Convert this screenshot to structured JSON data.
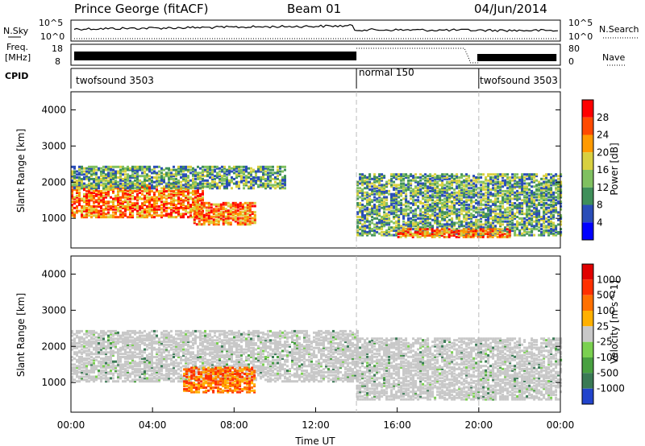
{
  "header": {
    "title": "Prince George (fitACF)",
    "beam": "Beam 01",
    "date": "04/Jun/2014"
  },
  "panels": {
    "nsky": {
      "label": "N.Sky",
      "ticks": [
        "10^5",
        "10^0"
      ],
      "right_label": "N.Search",
      "right_ticks": [
        "10^5",
        "10^0"
      ]
    },
    "freq": {
      "label_line1": "Freq.",
      "label_line2": "[MHz]",
      "ticks": [
        "18",
        "8"
      ],
      "right_label": "Nave",
      "right_ticks": [
        "80",
        "0"
      ]
    },
    "cpid": {
      "label": "CPID",
      "segments": [
        {
          "name": "twofsound 3503",
          "start": "00:00",
          "end": "14:00"
        },
        {
          "name": "normal 150",
          "start": "14:00",
          "end": "20:00"
        },
        {
          "name": "twofsound 3503",
          "start": "20:00",
          "end": "24:00"
        }
      ]
    }
  },
  "chart_data": [
    {
      "type": "heatmap",
      "title": "Power",
      "ylabel": "Slant Range [km]",
      "ylim": [
        180,
        4500
      ],
      "yticks": [
        "1000",
        "2000",
        "3000",
        "4000"
      ],
      "xlim": [
        "00:00",
        "24:00"
      ],
      "colorbar": {
        "label": "Power [dB]",
        "ticks": [
          "4",
          "8",
          "12",
          "16",
          "20",
          "24",
          "28"
        ],
        "colors": [
          "#0000ff",
          "#2a4db8",
          "#3f8f5a",
          "#80c060",
          "#d8d040",
          "#ff9a00",
          "#ff4a00",
          "#ff0000"
        ]
      },
      "regions": [
        {
          "t": [
            0.0,
            6.5
          ],
          "r": [
            1000,
            1900
          ],
          "level": "strong"
        },
        {
          "t": [
            0.0,
            10.5
          ],
          "r": [
            1800,
            2400
          ],
          "level": "medium"
        },
        {
          "t": [
            6.0,
            9.0
          ],
          "r": [
            800,
            1400
          ],
          "level": "strong"
        },
        {
          "t": [
            14.0,
            24.0
          ],
          "r": [
            500,
            2200
          ],
          "level": "medium"
        },
        {
          "t": [
            16.0,
            21.5
          ],
          "r": [
            450,
            700
          ],
          "level": "strong"
        }
      ]
    },
    {
      "type": "heatmap",
      "title": "Velocity",
      "ylabel": "Slant Range [km]",
      "ylim": [
        180,
        4500
      ],
      "yticks": [
        "1000",
        "2000",
        "3000",
        "4000"
      ],
      "xlim": [
        "00:00",
        "24:00"
      ],
      "colorbar": {
        "label": "Velocity [m s^-1]",
        "ticks": [
          "1000",
          "500",
          "100",
          "25",
          "-25",
          "-100",
          "-500",
          "-1000"
        ],
        "colors": [
          "#2244cc",
          "#3a7a55",
          "#48a040",
          "#7ad050",
          "#c8c8c8",
          "#ffb000",
          "#ff7000",
          "#ff3000",
          "#e00000"
        ]
      },
      "regions": [
        {
          "t": [
            0.0,
            14.0
          ],
          "r": [
            1000,
            2400
          ],
          "level": "ground"
        },
        {
          "t": [
            5.5,
            9.0
          ],
          "r": [
            700,
            1400
          ],
          "level": "negative"
        },
        {
          "t": [
            14.0,
            24.0
          ],
          "r": [
            500,
            2200
          ],
          "level": "ground"
        }
      ]
    }
  ],
  "xaxis": {
    "label": "Time UT",
    "ticks": [
      "00:00",
      "04:00",
      "08:00",
      "12:00",
      "16:00",
      "20:00",
      "00:00"
    ]
  }
}
